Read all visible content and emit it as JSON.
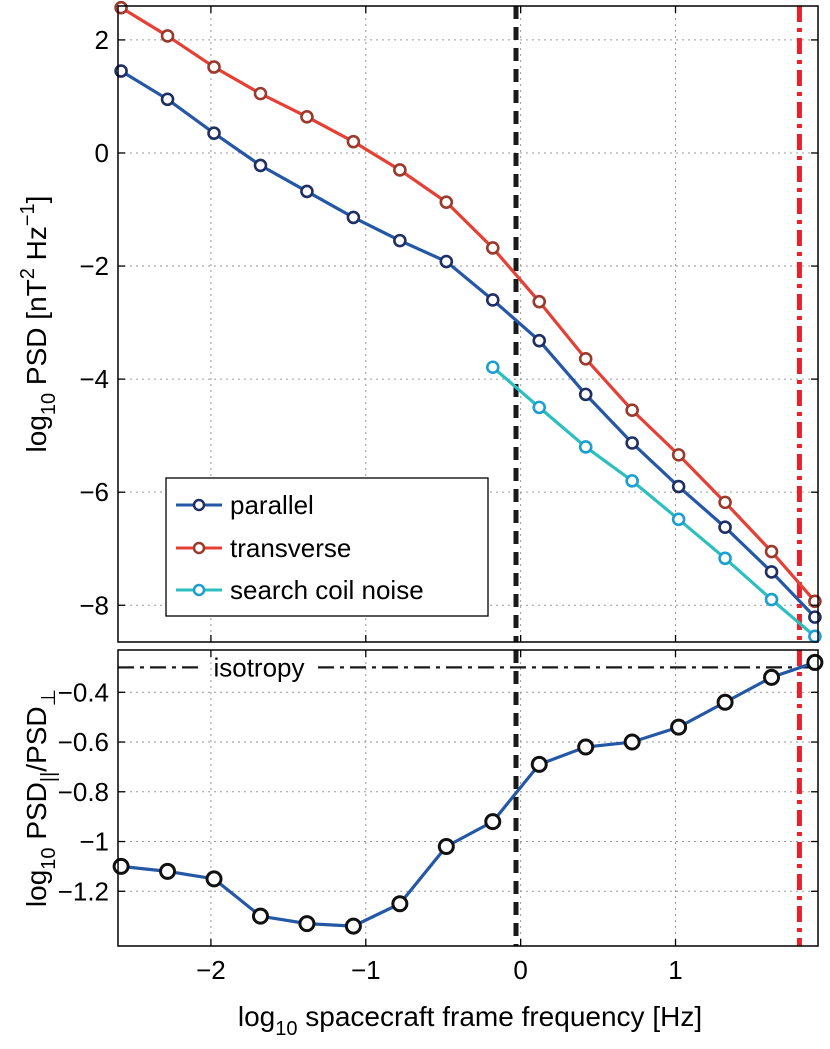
{
  "chart_data": [
    {
      "type": "line",
      "x_range": [
        -2.6,
        1.92
      ],
      "ylim": [
        -8.65,
        2.6
      ],
      "yticks": [
        2,
        0,
        -2,
        -4,
        -6,
        -8
      ],
      "ytick_labels": [
        "2",
        "0",
        "−2",
        "−4",
        "−6",
        "−8"
      ],
      "ylabel": {
        "pre": "log",
        "sub": "10",
        "mid": " PSD [nT",
        "sup1": "2",
        "mid2": " Hz",
        "sup2": "−1",
        "post": "]"
      },
      "legend_position": "lower-left",
      "grid": true,
      "vlines": [
        {
          "x": -0.03,
          "style": "dashed",
          "color": "#1a1a1a"
        },
        {
          "x": 1.8,
          "style": "dashdot",
          "color": "#e8202a"
        }
      ],
      "series": [
        {
          "name": "parallel",
          "color": "#2458a6",
          "marker_color": "#1f2f63",
          "x": [
            -2.58,
            -2.28,
            -1.98,
            -1.68,
            -1.38,
            -1.08,
            -0.78,
            -0.48,
            -0.18,
            0.12,
            0.42,
            0.72,
            1.02,
            1.32,
            1.62,
            1.9
          ],
          "y": [
            1.45,
            0.95,
            0.35,
            -0.22,
            -0.68,
            -1.14,
            -1.55,
            -1.92,
            -2.6,
            -3.32,
            -4.27,
            -5.13,
            -5.9,
            -6.62,
            -7.41,
            -8.21
          ]
        },
        {
          "name": "transverse",
          "color": "#e64035",
          "marker_color": "#9a3a2c",
          "x": [
            -2.58,
            -2.28,
            -1.98,
            -1.68,
            -1.38,
            -1.08,
            -0.78,
            -0.48,
            -0.18,
            0.12,
            0.42,
            0.72,
            1.02,
            1.32,
            1.62,
            1.9
          ],
          "y": [
            2.57,
            2.07,
            1.52,
            1.05,
            0.64,
            0.2,
            -0.3,
            -0.87,
            -1.68,
            -2.63,
            -3.64,
            -4.55,
            -5.34,
            -6.18,
            -7.05,
            -7.93
          ]
        },
        {
          "name": "search coil noise",
          "color": "#2dbfbf",
          "marker_color": "#1a9fd0",
          "x": [
            -0.18,
            0.12,
            0.42,
            0.72,
            1.02,
            1.32,
            1.62,
            1.9
          ],
          "y": [
            -3.79,
            -4.5,
            -5.2,
            -5.8,
            -6.48,
            -7.17,
            -7.9,
            -8.55
          ]
        }
      ]
    },
    {
      "type": "line",
      "x_range": [
        -2.6,
        1.92
      ],
      "ylim": [
        -1.42,
        -0.23
      ],
      "xticks": [
        -2,
        -1,
        0,
        1
      ],
      "xtick_labels": [
        "−2",
        "−1",
        "0",
        "1"
      ],
      "yticks": [
        -0.4,
        -0.6,
        -0.8,
        -1,
        -1.2
      ],
      "ytick_labels": [
        "−0.4",
        "−0.6",
        "−0.8",
        "−1",
        "−1.2"
      ],
      "xlabel": {
        "pre": "log",
        "sub": "10",
        "post": " spacecraft frame frequency [Hz]"
      },
      "ylabel": {
        "pre": "log",
        "sub": "10",
        "mid": " PSD",
        "sub2": "||",
        "mid2": "/PSD",
        "sub3": "⊥"
      },
      "grid": true,
      "hline": {
        "y": -0.3,
        "style": "dashdot",
        "label": "isotropy",
        "color": "#1a1a1a"
      },
      "vlines": [
        {
          "x": -0.03,
          "style": "dashed",
          "color": "#1a1a1a"
        },
        {
          "x": 1.8,
          "style": "dashdot",
          "color": "#e8202a"
        }
      ],
      "series": [
        {
          "color": "#2458a6",
          "marker_color": "#111111",
          "x": [
            -2.58,
            -2.28,
            -1.98,
            -1.68,
            -1.38,
            -1.08,
            -0.78,
            -0.48,
            -0.18,
            0.12,
            0.42,
            0.72,
            1.02,
            1.32,
            1.62,
            1.9
          ],
          "y": [
            -1.1,
            -1.12,
            -1.15,
            -1.3,
            -1.33,
            -1.34,
            -1.25,
            -1.02,
            -0.92,
            -0.69,
            -0.62,
            -0.6,
            -0.54,
            -0.44,
            -0.34,
            -0.28
          ]
        }
      ]
    }
  ]
}
